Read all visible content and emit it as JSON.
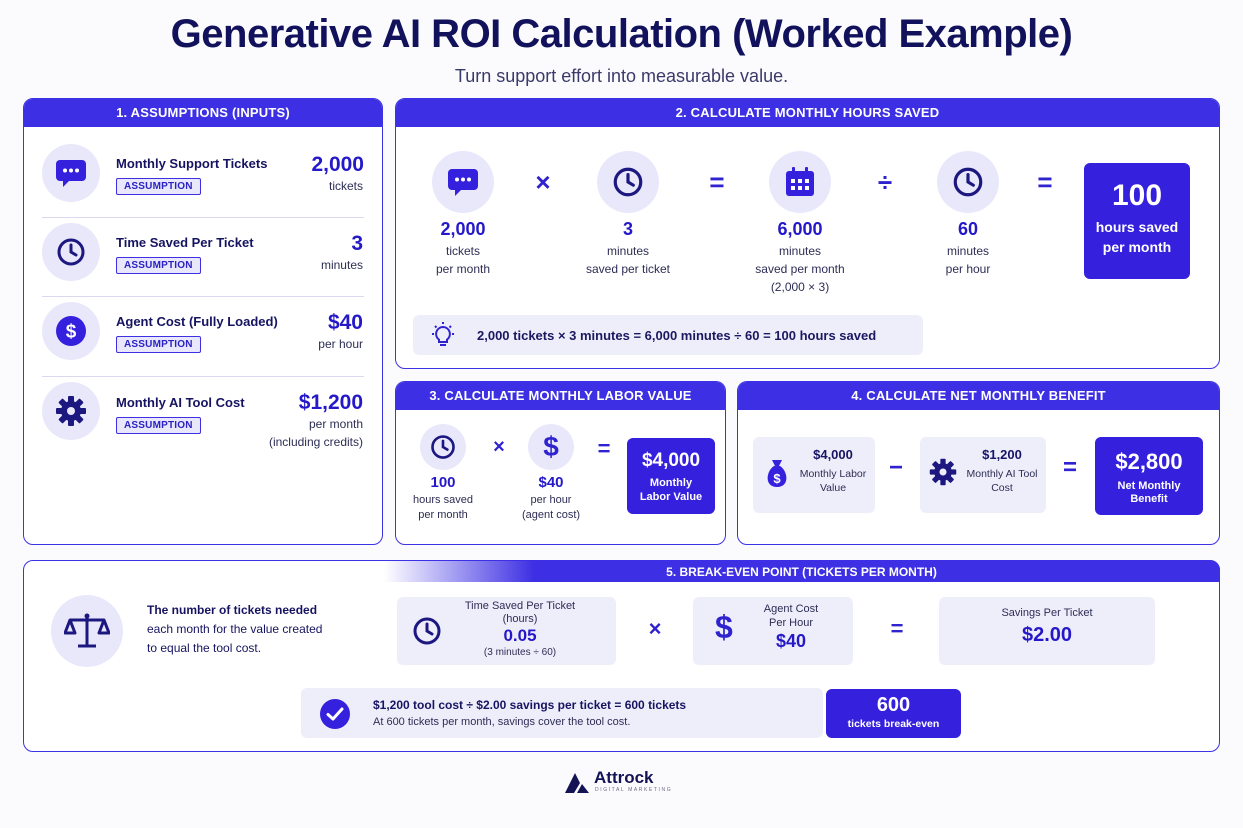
{
  "header": {
    "title": "Generative AI ROI Calculation (Worked Example)",
    "subtitle": "Turn support effort into measurable value."
  },
  "assumptions": {
    "heading": "1. ASSUMPTIONS (INPUTS)",
    "badge": "ASSUMPTION",
    "items": [
      {
        "label": "Monthly Support Tickets",
        "value": "2,000",
        "unit": "tickets",
        "icon": "chat-icon"
      },
      {
        "label": "Time Saved Per Ticket",
        "value": "3",
        "unit": "minutes",
        "icon": "clock-icon"
      },
      {
        "label": "Agent Cost (Fully Loaded)",
        "value": "$40",
        "unit": "per hour",
        "icon": "dollar-icon"
      },
      {
        "label": "Monthly AI Tool Cost",
        "value": "$1,200",
        "unit": "per month",
        "unit2": "(including credits)",
        "icon": "gear-icon"
      }
    ]
  },
  "hours": {
    "heading": "2. CALCULATE MONTHLY HOURS SAVED",
    "steps": [
      {
        "value": "2,000",
        "line1": "tickets",
        "line2": "per month"
      },
      {
        "value": "3",
        "line1": "minutes",
        "line2": "saved per ticket"
      },
      {
        "value": "6,000",
        "line1": "minutes",
        "line2": "saved per month",
        "line3": "(2,000 × 3)"
      },
      {
        "value": "60",
        "line1": "minutes",
        "line2": "per hour"
      }
    ],
    "ops": [
      "×",
      "=",
      "÷",
      "="
    ],
    "result_value": "100",
    "result_line1": "hours saved",
    "result_line2": "per month",
    "formula": "2,000 tickets × 3 minutes = 6,000 minutes ÷ 60 = 100 hours saved"
  },
  "labor": {
    "heading": "3. CALCULATE MONTHLY LABOR VALUE",
    "a_value": "100",
    "a_line1": "hours saved",
    "a_line2": "per month",
    "b_value": "$40",
    "b_line1": "per hour",
    "b_line2": "(agent cost)",
    "op1": "×",
    "op2": "=",
    "result_value": "$4,000",
    "result_line1": "Monthly",
    "result_line2": "Labor Value"
  },
  "net": {
    "heading": "4. CALCULATE NET MONTHLY BENEFIT",
    "a_value": "$4,000",
    "a_line1": "Monthly Labor",
    "a_line2": "Value",
    "b_value": "$1,200",
    "b_line1": "Monthly AI Tool",
    "b_line2": "Cost",
    "op1": "−",
    "op2": "=",
    "result_value": "$2,800",
    "result_line1": "Net Monthly",
    "result_line2": "Benefit"
  },
  "breakeven": {
    "heading": "5. BREAK-EVEN POINT (TICKETS PER MONTH)",
    "desc_line1": "The number of tickets needed",
    "desc_line2": "each month for the value created",
    "desc_line3": "to equal the tool cost.",
    "t_label1": "Time Saved Per Ticket",
    "t_label2": "(hours)",
    "t_value": "0.05",
    "t_note": "(3 minutes ÷ 60)",
    "op1": "×",
    "c_label1": "Agent Cost",
    "c_label2": "Per Hour",
    "c_value": "$40",
    "op2": "=",
    "s_label": "Savings Per Ticket",
    "s_value": "$2.00",
    "formula": "$1,200 tool cost ÷ $2.00 savings per ticket = 600 tickets",
    "formula_note": "At 600 tickets per month, savings cover the tool cost.",
    "result_value": "600",
    "result_label": "tickets break-even"
  },
  "footer": {
    "brand": "Attrock",
    "tagline": "DIGITAL MARKETING"
  },
  "colors": {
    "accent": "#3d2fe3",
    "navy": "#12125c",
    "soft": "#e9e8fb"
  }
}
